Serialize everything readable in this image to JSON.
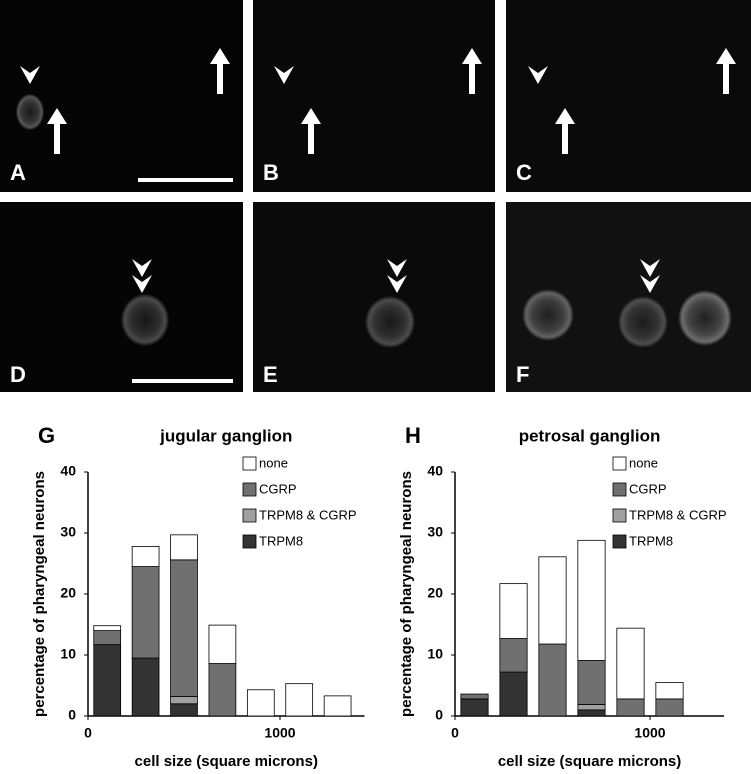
{
  "panels": [
    "A",
    "B",
    "C",
    "D",
    "E",
    "F"
  ],
  "chart_data": [
    {
      "type": "bar",
      "panel_label": "G",
      "title": "jugular ganglion",
      "x_label": "cell size (square microns)",
      "y_label": "percentage of pharyngeal neurons",
      "x": [
        100,
        300,
        500,
        700,
        900,
        1100,
        1300
      ],
      "xlim": [
        0,
        1440
      ],
      "xticks": [
        0,
        1000
      ],
      "ylim": [
        0,
        40
      ],
      "yticks": [
        0,
        10,
        20,
        30,
        40
      ],
      "stacked": true,
      "series": [
        {
          "name": "TRPM8",
          "color": "#333333",
          "values": [
            11.7,
            9.5,
            2,
            0,
            0,
            0,
            0
          ]
        },
        {
          "name": "TRPM8 & CGRP",
          "color": "#a0a0a0",
          "values": [
            0,
            0,
            1.2,
            0,
            0,
            0,
            0
          ]
        },
        {
          "name": "CGRP",
          "color": "#707070",
          "values": [
            2.3,
            15,
            22.4,
            8.6,
            0,
            0,
            0
          ]
        },
        {
          "name": "none",
          "color": "#ffffff",
          "values": [
            0.8,
            3.3,
            4.1,
            6.3,
            4.3,
            5.3,
            3.3
          ]
        }
      ]
    },
    {
      "type": "bar",
      "panel_label": "H",
      "title": "petrosal ganglion",
      "x_label": "cell size (square microns)",
      "y_label": "percentage of pharyngeal neurons",
      "x": [
        100,
        300,
        500,
        700,
        900,
        1100
      ],
      "xlim": [
        0,
        1380
      ],
      "xticks": [
        0,
        1000
      ],
      "ylim": [
        0,
        40
      ],
      "yticks": [
        0,
        10,
        20,
        30,
        40
      ],
      "stacked": true,
      "series": [
        {
          "name": "TRPM8",
          "color": "#333333",
          "values": [
            2.8,
            7.2,
            0,
            1,
            0,
            0
          ]
        },
        {
          "name": "TRPM8 & CGRP",
          "color": "#a0a0a0",
          "values": [
            0,
            0,
            0,
            0.9,
            0,
            0
          ]
        },
        {
          "name": "CGRP",
          "color": "#707070",
          "values": [
            0.8,
            5.5,
            11.8,
            7.2,
            2.8,
            2.8
          ]
        },
        {
          "name": "none",
          "color": "#ffffff",
          "values": [
            0,
            9,
            14.3,
            19.7,
            11.6,
            2.7
          ]
        }
      ]
    }
  ]
}
